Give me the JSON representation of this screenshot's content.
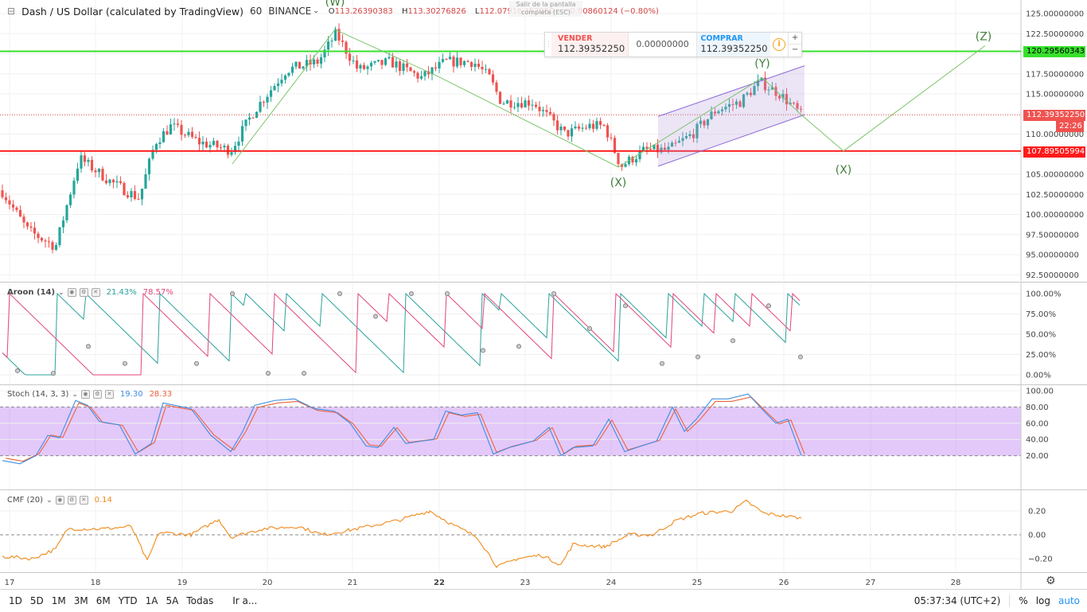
{
  "header": {
    "collapse_glyph": "⊟",
    "symbol_title": "Dash / US Dollar (calculated by TradingView)",
    "interval": "60",
    "exchange": "BINANCE",
    "o_label": "O",
    "o_value": "113.26390383",
    "h_label": "H",
    "h_value": "113.30276826",
    "l_label": "L",
    "l_value": "112.07916",
    "c_value": "352250",
    "change": "−0.90860124 (−0.80%)",
    "fullscreen_tooltip": "Salir de la pantalla completa (ESC)"
  },
  "trade": {
    "sell_label": "VENDER",
    "sell_price": "112.39352250",
    "spread": "0.00000000",
    "buy_label": "COMPRAR",
    "buy_price": "112.39352250",
    "info_icon": "info-icon",
    "plus": "+",
    "minus": "−"
  },
  "price_axis": {
    "labels": [
      "125.00000000",
      "122.50000000",
      "120.00000000",
      "117.50000000",
      "115.00000000",
      "112.50000000",
      "110.00000000",
      "107.50000000",
      "105.00000000",
      "102.50000000",
      "100.00000000",
      "97.50000000",
      "95.00000000",
      "92.50000000"
    ],
    "green_line_tag": "120.29560343",
    "last_price_tag": "112.39352250",
    "countdown_tag": "22:26",
    "red_line_tag": "107.89505994",
    "colors": {
      "green": "#37e02c",
      "red": "#ff1a1a",
      "up": "#26a69a",
      "down": "#ef5350"
    }
  },
  "wave_labels": [
    "(W)",
    "(X)",
    "(Y)",
    "(X)",
    "(Z)"
  ],
  "aroon": {
    "title": "Aroon (14)",
    "up_value": "21.43%",
    "down_value": "78.57%",
    "axis": [
      "100.00%",
      "75.00%",
      "50.00%",
      "25.00%",
      "0.00%"
    ],
    "up_color": "#2aa19c",
    "down_color": "#e0457b"
  },
  "stoch": {
    "title": "Stoch (14, 3, 3)",
    "k_value": "19.30",
    "d_value": "28.33",
    "axis": [
      "100.00",
      "80.00",
      "60.00",
      "40.00",
      "20.00"
    ],
    "k_color": "#3d8ee0",
    "d_color": "#f0613a",
    "band_color": "#e3c8fa"
  },
  "cmf": {
    "title": "CMF (20)",
    "value": "0.14",
    "axis": [
      "0.20",
      "0.00",
      "−0.20"
    ],
    "color": "#f0891a"
  },
  "time_axis": [
    "17",
    "18",
    "19",
    "20",
    "21",
    "22",
    "23",
    "24",
    "25",
    "26",
    "27",
    "28"
  ],
  "gear_icon": "gear-icon",
  "bottombar": {
    "ranges": [
      "1D",
      "5D",
      "1M",
      "3M",
      "6M",
      "YTD",
      "1A",
      "5A",
      "Todas"
    ],
    "goto": "Ir a...",
    "clock": "05:37:34 (UTC+2)",
    "percent": "%",
    "log": "log",
    "auto": "auto"
  }
}
